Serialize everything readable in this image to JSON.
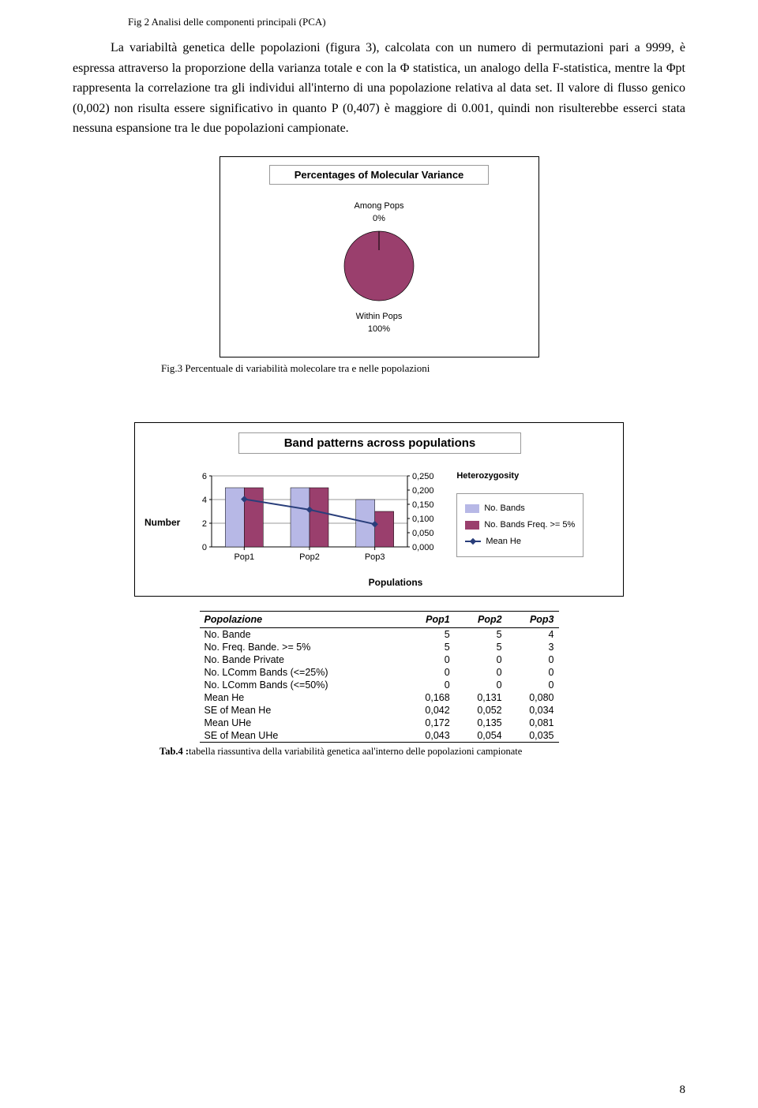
{
  "fig2_label": "Fig 2 Analisi delle componenti principali (PCA)",
  "paragraph": "La variabiltà genetica delle popolazioni (figura 3), calcolata con un numero di permutazioni pari a 9999, è espressa attraverso la proporzione della varianza totale e con  la Φ statistica, un analogo della F-statistica, mentre la Φpt rappresenta la correlazione tra gli individui all'interno di una popolazione relativa al data set.  Il valore di flusso genico (0,002) non risulta essere significativo in quanto P  (0,407) è maggiore di 0.001, quindi non risulterebbe esserci stata nessuna espansione tra le due popolazioni campionate.",
  "pie": {
    "title": "Percentages of Molecular Variance",
    "labels": {
      "among_line1": "Among Pops",
      "among_line2": "0%",
      "within_line1": "Within Pops",
      "within_line2": "100%"
    },
    "fill_color": "#9a3f6d",
    "caption": "Fig.3 Percentuale di variabilità molecolare tra e nelle popolazioni"
  },
  "bar": {
    "title": "Band patterns across populations",
    "y_left_label": "Number",
    "x_label": "Populations",
    "categories": [
      "Pop1",
      "Pop2",
      "Pop3"
    ],
    "series": {
      "bands": {
        "label": "No. Bands",
        "color": "#b7b8e6",
        "values": [
          5,
          5,
          4
        ]
      },
      "bands_freq": {
        "label": "No. Bands Freq. >= 5%",
        "color": "#9a3f6d",
        "values": [
          5,
          5,
          3
        ]
      },
      "mean_he": {
        "label": "Mean He",
        "color": "#293e7a",
        "values": [
          0.168,
          0.131,
          0.08
        ]
      }
    },
    "y_left": {
      "ticks": [
        "6",
        "4",
        "2",
        "0"
      ],
      "max": 6
    },
    "y_right": {
      "ticks": [
        "0,250",
        "0,200",
        "0,150",
        "0,100",
        "0,050",
        "0,000"
      ],
      "max": 0.25
    },
    "legend_title": "Heterozygosity"
  },
  "table": {
    "header": [
      "Popolazione",
      "Pop1",
      "Pop2",
      "Pop3"
    ],
    "rows": [
      [
        "No. Bande",
        "5",
        "5",
        "4"
      ],
      [
        "No. Freq. Bande. >= 5%",
        "5",
        "5",
        "3"
      ],
      [
        "No. Bande Private",
        "0",
        "0",
        "0"
      ],
      [
        "No. LComm Bands (<=25%)",
        "0",
        "0",
        "0"
      ],
      [
        "No. LComm Bands (<=50%)",
        "0",
        "0",
        "0"
      ],
      [
        "Mean He",
        "0,168",
        "0,131",
        "0,080"
      ],
      [
        "SE of Mean He",
        "0,042",
        "0,052",
        "0,034"
      ],
      [
        "Mean UHe",
        "0,172",
        "0,135",
        "0,081"
      ],
      [
        "SE of Mean UHe",
        "0,043",
        "0,054",
        "0,035"
      ]
    ],
    "caption": "Tab.4 :tabella riassuntiva della variabilità genetica aal'interno delle popolazioni campionate"
  },
  "page_number": "8"
}
